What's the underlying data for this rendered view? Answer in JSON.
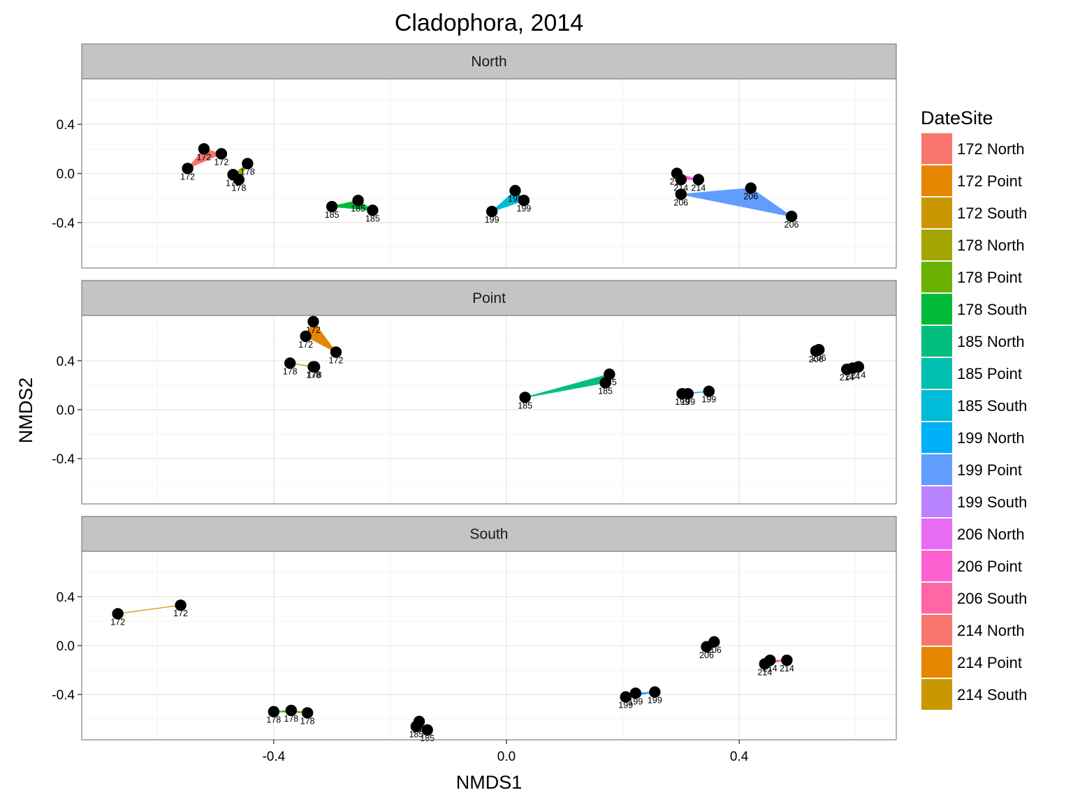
{
  "chart_data": {
    "type": "scatter",
    "title": "Cladophora, 2014",
    "xlabel": "NMDS1",
    "ylabel": "NMDS2",
    "xlim": [
      -0.73,
      0.67
    ],
    "ylim": [
      -0.77,
      0.77
    ],
    "x_ticks": [
      -0.4,
      0.0,
      0.4
    ],
    "x_tick_labels": [
      "-0.4",
      "0.0",
      "0.4"
    ],
    "y_ticks": [
      -0.4,
      0.0,
      0.4
    ],
    "y_tick_labels": [
      "-0.4",
      "0.0",
      "0.4"
    ],
    "grid": true,
    "legend": {
      "title": "DateSite",
      "position": "right",
      "entries": [
        {
          "label": "172 North",
          "color": "#F8766D"
        },
        {
          "label": "172 Point",
          "color": "#E58700"
        },
        {
          "label": "172 South",
          "color": "#C99800"
        },
        {
          "label": "178 North",
          "color": "#A3A500"
        },
        {
          "label": "178 Point",
          "color": "#6BB100"
        },
        {
          "label": "178 South",
          "color": "#00BA38"
        },
        {
          "label": "185 North",
          "color": "#00BF7D"
        },
        {
          "label": "185 Point",
          "color": "#00C0AF"
        },
        {
          "label": "185 South",
          "color": "#00BCD8"
        },
        {
          "label": "199 North",
          "color": "#00B0F6"
        },
        {
          "label": "199 Point",
          "color": "#619CFF"
        },
        {
          "label": "199 South",
          "color": "#B983FF"
        },
        {
          "label": "206 North",
          "color": "#E76BF3"
        },
        {
          "label": "206 Point",
          "color": "#FD61D1"
        },
        {
          "label": "206 South",
          "color": "#FF67A4"
        },
        {
          "label": "214 North",
          "color": "#F8766D"
        },
        {
          "label": "214 Point",
          "color": "#E58700"
        },
        {
          "label": "214 South",
          "color": "#C99800"
        }
      ]
    },
    "panels": [
      {
        "name": "North",
        "groups": [
          {
            "group": "172 North",
            "color": "#F8766D",
            "points": [
              [
                -0.548,
                0.04
              ],
              [
                -0.52,
                0.2
              ],
              [
                -0.49,
                0.16
              ]
            ],
            "label": "172"
          },
          {
            "group": "178 North",
            "color": "#A3A500",
            "points": [
              [
                -0.47,
                -0.01
              ],
              [
                -0.445,
                0.08
              ],
              [
                -0.46,
                -0.05
              ]
            ],
            "label": "178"
          },
          {
            "group": "185 North",
            "color": "#00BA38",
            "points": [
              [
                -0.3,
                -0.27
              ],
              [
                -0.255,
                -0.22
              ],
              [
                -0.23,
                -0.3
              ]
            ],
            "label": "185"
          },
          {
            "group": "199 North",
            "color": "#00BCD8",
            "points": [
              [
                -0.025,
                -0.31
              ],
              [
                0.015,
                -0.14
              ],
              [
                0.03,
                -0.22
              ]
            ],
            "label": "199"
          },
          {
            "group": "206 North",
            "color": "#619CFF",
            "points": [
              [
                0.3,
                -0.17
              ],
              [
                0.42,
                -0.12
              ],
              [
                0.49,
                -0.35
              ]
            ],
            "label": "206"
          },
          {
            "group": "214 North",
            "color": "#F564E3",
            "points": [
              [
                0.293,
                0.0
              ],
              [
                0.3,
                -0.05
              ],
              [
                0.33,
                -0.05
              ]
            ],
            "label": "214"
          }
        ]
      },
      {
        "name": "Point",
        "groups": [
          {
            "group": "172 Point",
            "color": "#E58700",
            "points": [
              [
                -0.345,
                0.6
              ],
              [
                -0.332,
                0.72
              ],
              [
                -0.293,
                0.47
              ]
            ],
            "label": "172"
          },
          {
            "group": "178 Point",
            "color": "#A3A500",
            "points": [
              [
                -0.372,
                0.38
              ],
              [
                -0.332,
                0.35
              ],
              [
                -0.33,
                0.35
              ]
            ],
            "label": "178"
          },
          {
            "group": "185 Point",
            "color": "#00BF7D",
            "points": [
              [
                0.032,
                0.1
              ],
              [
                0.17,
                0.22
              ],
              [
                0.177,
                0.29
              ]
            ],
            "label": "185"
          },
          {
            "group": "199 Point",
            "color": "#00B0F6",
            "points": [
              [
                0.302,
                0.13
              ],
              [
                0.312,
                0.13
              ],
              [
                0.348,
                0.15
              ]
            ],
            "label": "199"
          },
          {
            "group": "206 Point",
            "color": "#B983FF",
            "points": [
              [
                0.532,
                0.48
              ],
              [
                0.537,
                0.49
              ]
            ],
            "label": "206"
          },
          {
            "group": "214 Point",
            "color": "#FF64B0",
            "points": [
              [
                0.585,
                0.33
              ],
              [
                0.595,
                0.34
              ],
              [
                0.605,
                0.35
              ]
            ],
            "label": "214"
          }
        ]
      },
      {
        "name": "South",
        "groups": [
          {
            "group": "172 South",
            "color": "#C99800",
            "points": [
              [
                -0.668,
                0.26
              ],
              [
                -0.56,
                0.33
              ]
            ],
            "label": "172"
          },
          {
            "group": "178 South",
            "color": "#53B400",
            "points": [
              [
                -0.4,
                -0.54
              ],
              [
                -0.37,
                -0.53
              ],
              [
                -0.342,
                -0.55
              ]
            ],
            "label": "178"
          },
          {
            "group": "185 South",
            "color": "#00C094",
            "points": [
              [
                -0.155,
                -0.66
              ],
              [
                -0.15,
                -0.62
              ],
              [
                -0.136,
                -0.69
              ]
            ],
            "label": "185"
          },
          {
            "group": "199 South",
            "color": "#00A9FF",
            "points": [
              [
                0.205,
                -0.42
              ],
              [
                0.222,
                -0.39
              ],
              [
                0.255,
                -0.38
              ]
            ],
            "label": "199"
          },
          {
            "group": "206 South",
            "color": "#DB72FB",
            "points": [
              [
                0.344,
                -0.01
              ],
              [
                0.357,
                0.03
              ]
            ],
            "label": "206"
          },
          {
            "group": "214 South",
            "color": "#FF6C91",
            "points": [
              [
                0.444,
                -0.15
              ],
              [
                0.453,
                -0.12
              ],
              [
                0.482,
                -0.12
              ]
            ],
            "label": "214"
          }
        ]
      }
    ]
  }
}
